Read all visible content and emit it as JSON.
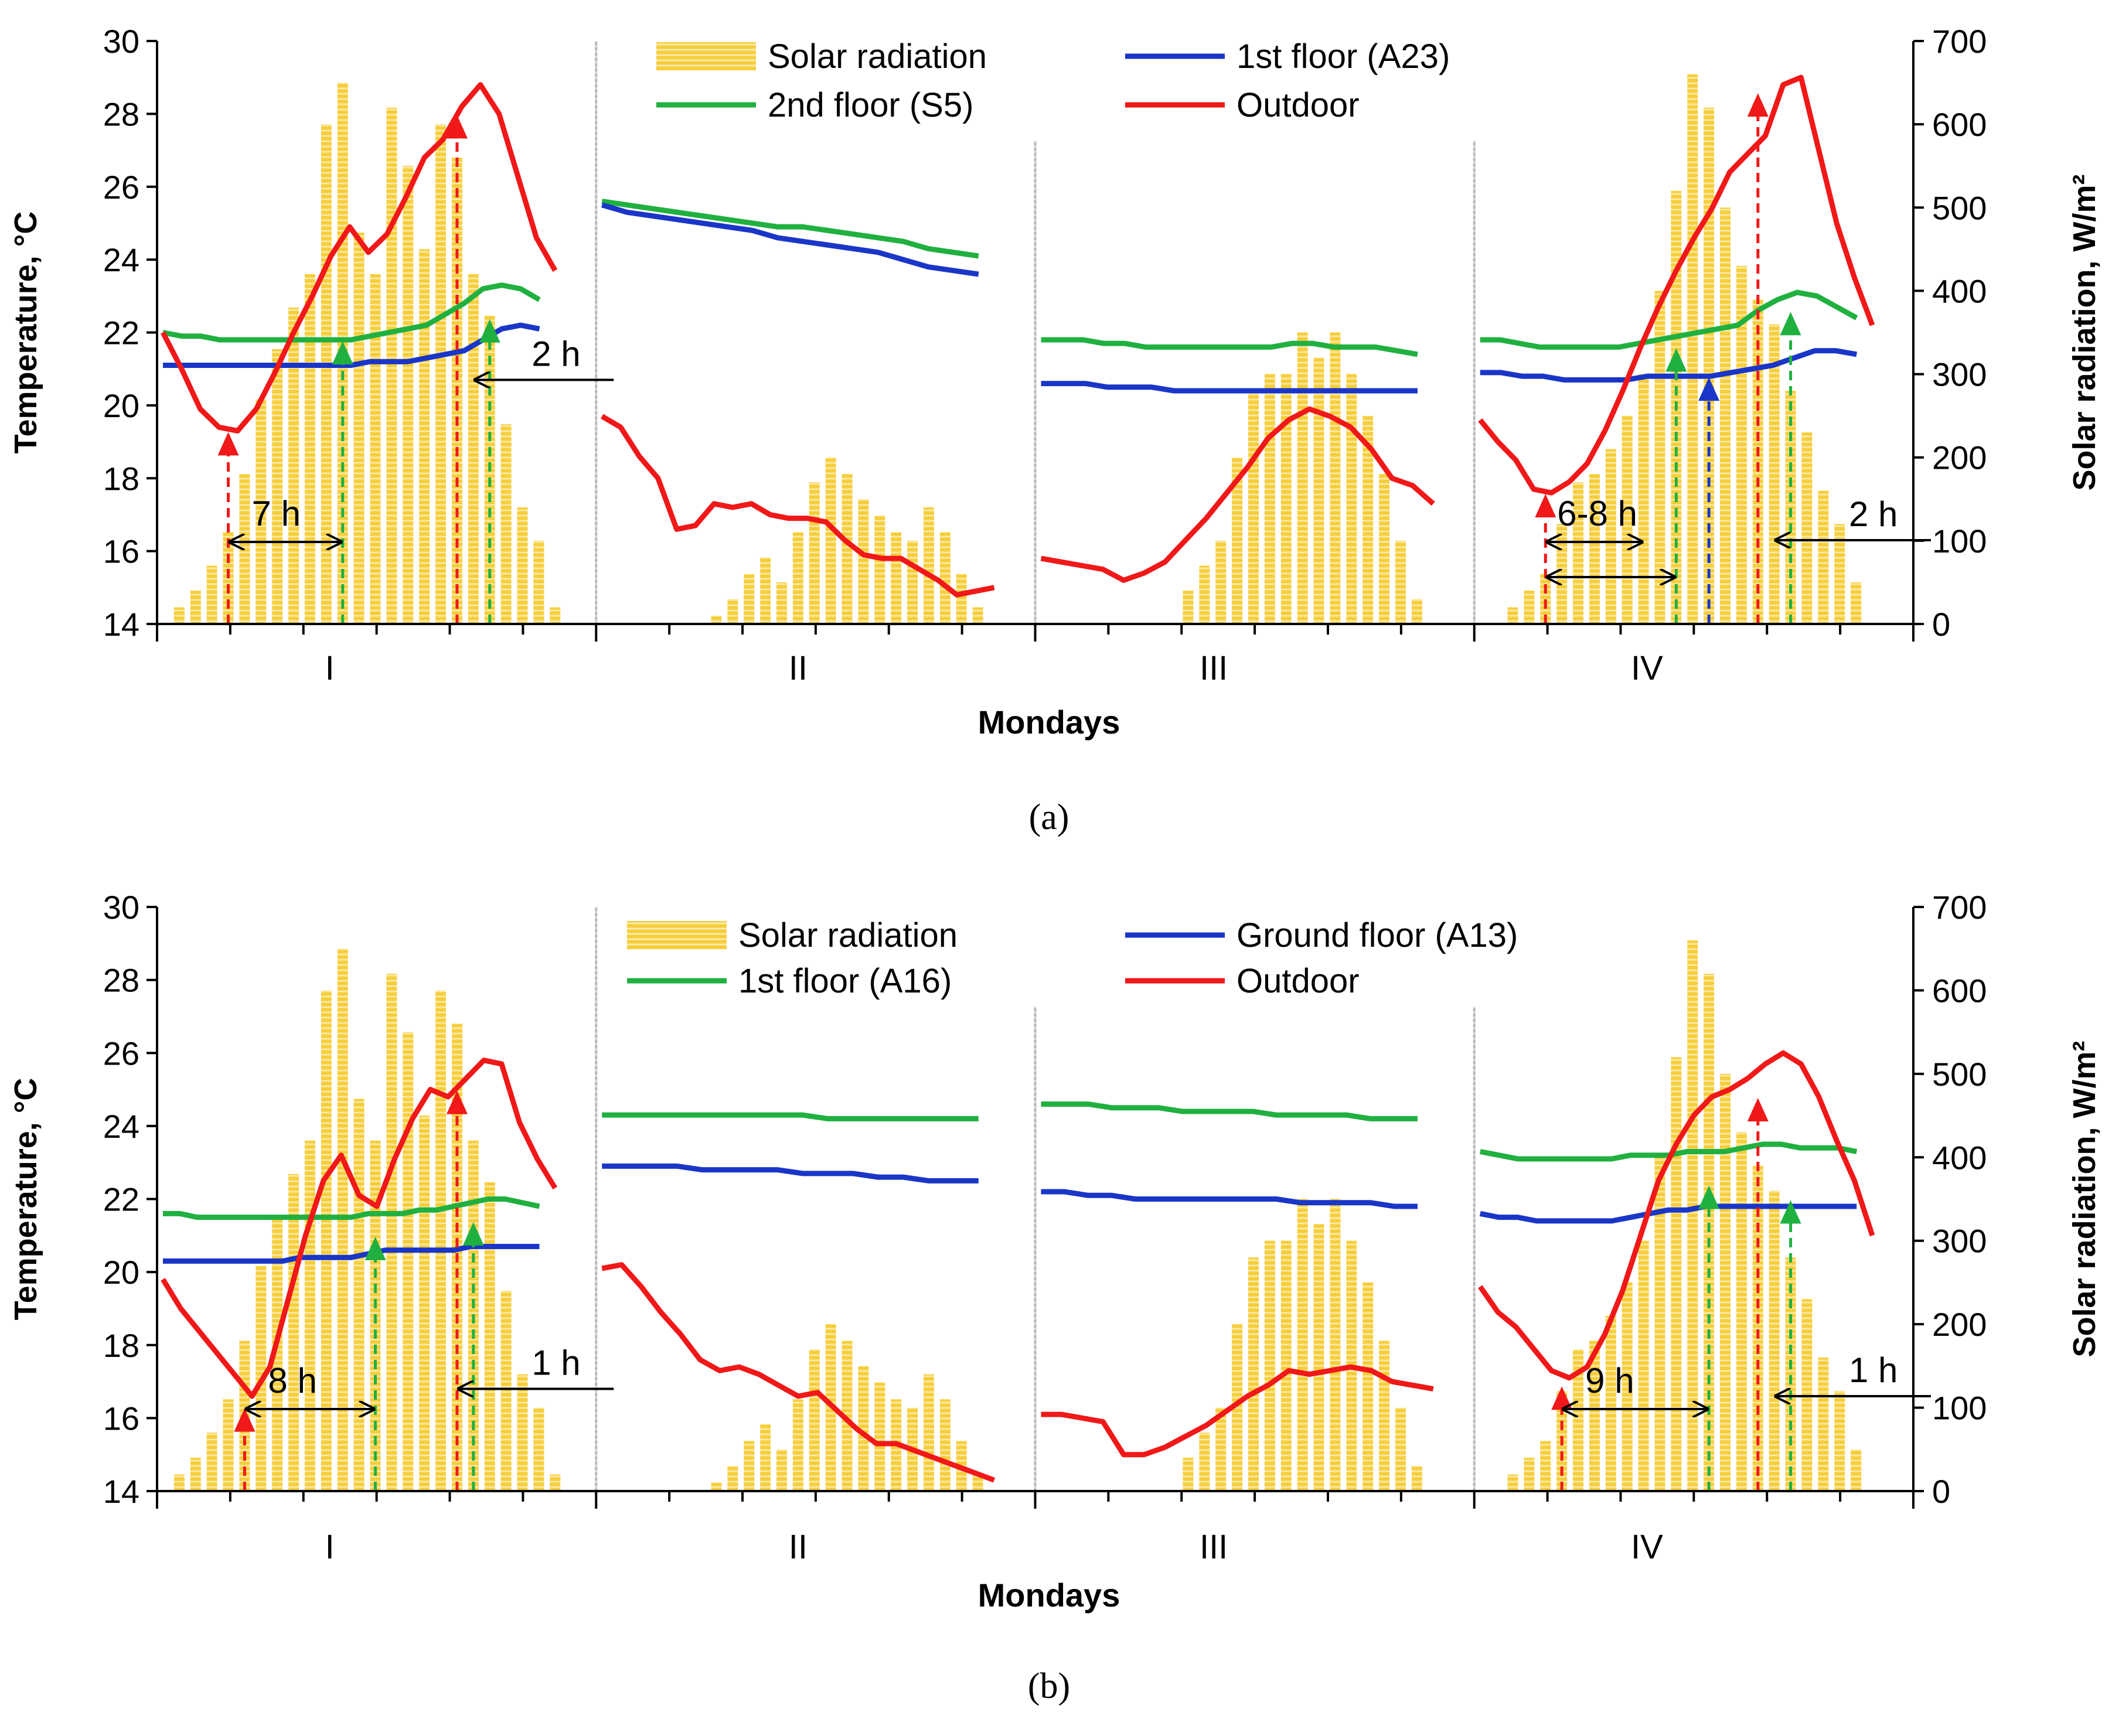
{
  "chart_data": [
    {
      "panel": "(a)",
      "type": "line+bar",
      "xlabel": "Mondays",
      "ylabel_left": "Temperature, °C",
      "ylabel_right": "Solar radiation, W/m²",
      "ylim_left": [
        14,
        30
      ],
      "yticks_left": [
        14,
        16,
        18,
        20,
        22,
        24,
        26,
        28,
        30
      ],
      "ylim_right": [
        0,
        700
      ],
      "yticks_right": [
        0,
        100,
        200,
        300,
        400,
        500,
        600,
        700
      ],
      "day_labels": [
        "I",
        "II",
        "III",
        "IV"
      ],
      "legend": [
        "Solar radiation",
        "1st floor (A23)",
        "2nd floor (S5)",
        "Outdoor"
      ],
      "colors": {
        "solar": "#f5c518",
        "first": "#1a36c8",
        "second": "#20b040",
        "outdoor": "#f01818"
      },
      "days": [
        {
          "label": "I",
          "outdoor": [
            22.0,
            21.0,
            19.9,
            19.4,
            19.3,
            19.9,
            20.9,
            22.0,
            23.0,
            24.1,
            24.9,
            24.2,
            24.7,
            25.7,
            26.8,
            27.3,
            28.2,
            28.8,
            28.0,
            26.3,
            24.6,
            23.7
          ],
          "first": [
            21.1,
            21.1,
            21.1,
            21.1,
            21.1,
            21.1,
            21.1,
            21.1,
            21.1,
            21.1,
            21.1,
            21.2,
            21.2,
            21.2,
            21.3,
            21.4,
            21.5,
            21.8,
            22.1,
            22.2,
            22.1
          ],
          "second": [
            22.0,
            21.9,
            21.9,
            21.8,
            21.8,
            21.8,
            21.8,
            21.8,
            21.8,
            21.8,
            21.8,
            21.9,
            22.0,
            22.1,
            22.2,
            22.5,
            22.8,
            23.2,
            23.3,
            23.2,
            22.9
          ],
          "solar": [
            0,
            20,
            40,
            70,
            110,
            180,
            270,
            330,
            380,
            420,
            600,
            650,
            470,
            420,
            620,
            550,
            450,
            600,
            560,
            420,
            370,
            240,
            140,
            100,
            20
          ],
          "annotations": [
            {
              "text": "7 h",
              "from_hour": 4,
              "to_hour": 11
            },
            {
              "text": "2 h",
              "arrow_hour": 19,
              "temp": 20.7
            }
          ],
          "markers": [
            {
              "series": "outdoor",
              "hour": 4,
              "temp": 19.3
            },
            {
              "series": "second",
              "hour": 11,
              "temp": 21.8
            },
            {
              "series": "outdoor",
              "hour": 18,
              "temp": 28.0
            },
            {
              "series": "second",
              "hour": 20,
              "temp": 22.4
            }
          ]
        },
        {
          "label": "II",
          "outdoor": [
            19.7,
            19.4,
            18.6,
            18.0,
            16.6,
            16.7,
            17.3,
            17.2,
            17.3,
            17.0,
            16.9,
            16.9,
            16.8,
            16.3,
            15.9,
            15.8,
            15.8,
            15.5,
            15.2,
            14.8,
            14.9,
            15.0
          ],
          "first": [
            25.5,
            25.3,
            25.2,
            25.1,
            25.0,
            24.9,
            24.8,
            24.6,
            24.5,
            24.4,
            24.3,
            24.2,
            24.0,
            23.8,
            23.7,
            23.6
          ],
          "second": [
            25.6,
            25.5,
            25.4,
            25.3,
            25.2,
            25.1,
            25.0,
            24.9,
            24.9,
            24.8,
            24.7,
            24.6,
            24.5,
            24.3,
            24.2,
            24.1
          ],
          "solar": [
            0,
            0,
            0,
            0,
            0,
            0,
            0,
            10,
            30,
            60,
            80,
            50,
            110,
            170,
            200,
            180,
            150,
            130,
            110,
            100,
            140,
            110,
            60,
            20,
            0
          ],
          "annotations": [],
          "markers": []
        },
        {
          "label": "III",
          "outdoor": [
            15.8,
            15.7,
            15.6,
            15.5,
            15.2,
            15.4,
            15.7,
            16.3,
            16.9,
            17.6,
            18.3,
            19.1,
            19.6,
            19.9,
            19.7,
            19.4,
            18.8,
            18.0,
            17.8,
            17.3
          ],
          "first": [
            20.6,
            20.6,
            20.6,
            20.5,
            20.5,
            20.5,
            20.4,
            20.4,
            20.4,
            20.4,
            20.4,
            20.4,
            20.4,
            20.4,
            20.4,
            20.4,
            20.4,
            20.4
          ],
          "second": [
            21.8,
            21.8,
            21.8,
            21.7,
            21.7,
            21.6,
            21.6,
            21.6,
            21.6,
            21.6,
            21.6,
            21.6,
            21.7,
            21.7,
            21.6,
            21.6,
            21.6,
            21.5,
            21.4
          ],
          "solar": [
            0,
            0,
            0,
            0,
            0,
            0,
            0,
            0,
            0,
            40,
            70,
            100,
            200,
            280,
            300,
            300,
            350,
            320,
            350,
            300,
            250,
            180,
            100,
            30,
            0
          ],
          "annotations": [],
          "markers": []
        },
        {
          "label": "IV",
          "outdoor": [
            19.6,
            19.0,
            18.5,
            17.7,
            17.6,
            17.9,
            18.4,
            19.3,
            20.4,
            21.6,
            22.7,
            23.7,
            24.6,
            25.4,
            26.4,
            26.9,
            27.4,
            28.8,
            29.0,
            27.0,
            25.0,
            23.5,
            22.2
          ],
          "first": [
            20.9,
            20.9,
            20.8,
            20.8,
            20.7,
            20.7,
            20.7,
            20.7,
            20.8,
            20.8,
            20.8,
            20.8,
            20.9,
            21.0,
            21.1,
            21.3,
            21.5,
            21.5,
            21.4
          ],
          "second": [
            21.8,
            21.8,
            21.7,
            21.6,
            21.6,
            21.6,
            21.6,
            21.6,
            21.7,
            21.8,
            21.9,
            22.0,
            22.1,
            22.2,
            22.6,
            22.9,
            23.1,
            23.0,
            22.7,
            22.4
          ],
          "solar": [
            0,
            0,
            20,
            40,
            60,
            120,
            170,
            180,
            210,
            250,
            300,
            400,
            520,
            660,
            620,
            500,
            430,
            390,
            360,
            280,
            230,
            160,
            120,
            50,
            0
          ],
          "annotations": [
            {
              "text": "6-8 h",
              "from_hour": 4,
              "to_hour": 10
            },
            {
              "text": "2 h",
              "arrow_hour": 18,
              "temp": 16.3
            }
          ],
          "markers": [
            {
              "series": "outdoor",
              "hour": 4,
              "temp": 17.6
            },
            {
              "series": "second",
              "hour": 12,
              "temp": 21.6
            },
            {
              "series": "first",
              "hour": 14,
              "temp": 20.8
            },
            {
              "series": "outdoor",
              "hour": 17,
              "temp": 28.6
            },
            {
              "series": "second",
              "hour": 19,
              "temp": 22.6
            }
          ]
        }
      ]
    },
    {
      "panel": "(b)",
      "type": "line+bar",
      "xlabel": "Mondays",
      "ylabel_left": "Temperature, °C",
      "ylabel_right": "Solar radiation, W/m²",
      "ylim_left": [
        14,
        30
      ],
      "yticks_left": [
        14,
        16,
        18,
        20,
        22,
        24,
        26,
        28,
        30
      ],
      "ylim_right": [
        0,
        700
      ],
      "yticks_right": [
        0,
        100,
        200,
        300,
        400,
        500,
        600,
        700
      ],
      "day_labels": [
        "I",
        "II",
        "III",
        "IV"
      ],
      "legend": [
        "Solar radiation",
        "Ground floor (A13)",
        "1st floor (A16)",
        "Outdoor"
      ],
      "colors": {
        "solar": "#f5c518",
        "first": "#1a36c8",
        "second": "#20b040",
        "outdoor": "#f01818"
      },
      "days": [
        {
          "label": "I",
          "outdoor": [
            19.8,
            19.0,
            18.4,
            17.8,
            17.2,
            16.6,
            17.4,
            19.2,
            21.0,
            22.5,
            23.2,
            22.1,
            21.8,
            23.1,
            24.2,
            25.0,
            24.8,
            25.3,
            25.8,
            25.7,
            24.1,
            23.1,
            22.3
          ],
          "first": [
            20.3,
            20.3,
            20.3,
            20.3,
            20.3,
            20.3,
            20.3,
            20.3,
            20.4,
            20.4,
            20.4,
            20.4,
            20.5,
            20.6,
            20.6,
            20.6,
            20.6,
            20.6,
            20.7,
            20.7,
            20.7,
            20.7,
            20.7
          ],
          "second": [
            21.6,
            21.6,
            21.5,
            21.5,
            21.5,
            21.5,
            21.5,
            21.5,
            21.5,
            21.5,
            21.5,
            21.5,
            21.6,
            21.6,
            21.6,
            21.7,
            21.7,
            21.8,
            21.9,
            22.0,
            22.0,
            21.9,
            21.8
          ],
          "solar": [
            0,
            20,
            40,
            70,
            110,
            180,
            270,
            330,
            380,
            420,
            600,
            650,
            470,
            420,
            620,
            550,
            450,
            600,
            560,
            420,
            370,
            240,
            140,
            100,
            20
          ],
          "annotations": [
            {
              "text": "8 h",
              "from_hour": 5,
              "to_hour": 13
            },
            {
              "text": "1 h",
              "arrow_hour": 18,
              "temp": 16.8
            }
          ],
          "markers": [
            {
              "series": "outdoor",
              "hour": 5,
              "temp": 16.3
            },
            {
              "series": "second",
              "hour": 13,
              "temp": 21.0
            },
            {
              "series": "outdoor",
              "hour": 18,
              "temp": 25.0
            },
            {
              "series": "second",
              "hour": 19,
              "temp": 21.4
            }
          ]
        },
        {
          "label": "II",
          "outdoor": [
            20.1,
            20.2,
            19.6,
            18.9,
            18.3,
            17.6,
            17.3,
            17.4,
            17.2,
            16.9,
            16.6,
            16.7,
            16.2,
            15.7,
            15.3,
            15.3,
            15.1,
            14.9,
            14.7,
            14.5,
            14.3
          ],
          "first": [
            22.9,
            22.9,
            22.9,
            22.9,
            22.8,
            22.8,
            22.8,
            22.8,
            22.7,
            22.7,
            22.7,
            22.6,
            22.6,
            22.5,
            22.5,
            22.5
          ],
          "second": [
            24.3,
            24.3,
            24.3,
            24.3,
            24.3,
            24.3,
            24.3,
            24.3,
            24.3,
            24.2,
            24.2,
            24.2,
            24.2,
            24.2,
            24.2,
            24.2
          ],
          "solar": [
            0,
            0,
            0,
            0,
            0,
            0,
            0,
            10,
            30,
            60,
            80,
            50,
            110,
            170,
            200,
            180,
            150,
            130,
            110,
            100,
            140,
            110,
            60,
            20,
            0
          ],
          "annotations": [],
          "markers": []
        },
        {
          "label": "III",
          "outdoor": [
            16.1,
            16.1,
            16.0,
            15.9,
            15.0,
            15.0,
            15.2,
            15.5,
            15.8,
            16.2,
            16.6,
            16.9,
            17.3,
            17.2,
            17.3,
            17.4,
            17.3,
            17.0,
            16.9,
            16.8
          ],
          "first": [
            22.2,
            22.2,
            22.1,
            22.1,
            22.0,
            22.0,
            22.0,
            22.0,
            22.0,
            22.0,
            22.0,
            21.9,
            21.9,
            21.9,
            21.9,
            21.8,
            21.8
          ],
          "second": [
            24.6,
            24.6,
            24.6,
            24.5,
            24.5,
            24.5,
            24.4,
            24.4,
            24.4,
            24.4,
            24.3,
            24.3,
            24.3,
            24.3,
            24.2,
            24.2,
            24.2
          ],
          "solar": [
            0,
            0,
            0,
            0,
            0,
            0,
            0,
            0,
            0,
            40,
            70,
            100,
            200,
            280,
            300,
            300,
            350,
            320,
            350,
            300,
            250,
            180,
            100,
            30,
            0
          ],
          "annotations": [],
          "markers": []
        },
        {
          "label": "IV",
          "outdoor": [
            19.6,
            18.9,
            18.5,
            17.9,
            17.3,
            17.1,
            17.4,
            18.3,
            19.5,
            21.0,
            22.5,
            23.5,
            24.3,
            24.8,
            25.0,
            25.3,
            25.7,
            26.0,
            25.7,
            24.8,
            23.6,
            22.5,
            21.0
          ],
          "first": [
            21.6,
            21.5,
            21.5,
            21.4,
            21.4,
            21.4,
            21.4,
            21.4,
            21.5,
            21.6,
            21.7,
            21.7,
            21.8,
            21.8,
            21.8,
            21.8,
            21.8,
            21.8,
            21.8,
            21.8,
            21.8
          ],
          "second": [
            23.3,
            23.2,
            23.1,
            23.1,
            23.1,
            23.1,
            23.1,
            23.1,
            23.2,
            23.2,
            23.2,
            23.3,
            23.3,
            23.3,
            23.4,
            23.5,
            23.5,
            23.4,
            23.4,
            23.4,
            23.3
          ],
          "solar": [
            0,
            0,
            20,
            40,
            60,
            120,
            170,
            180,
            210,
            250,
            300,
            400,
            520,
            660,
            620,
            500,
            430,
            390,
            360,
            280,
            230,
            160,
            120,
            50,
            0
          ],
          "annotations": [
            {
              "text": "9 h",
              "from_hour": 5,
              "to_hour": 14
            },
            {
              "text": "1 h",
              "arrow_hour": 18,
              "temp": 16.6
            }
          ],
          "markers": [
            {
              "series": "outdoor",
              "hour": 5,
              "temp": 16.9
            },
            {
              "series": "second",
              "hour": 14,
              "temp": 22.4
            },
            {
              "series": "outdoor",
              "hour": 17,
              "temp": 24.8
            },
            {
              "series": "second",
              "hour": 19,
              "temp": 22.0
            }
          ]
        }
      ]
    }
  ]
}
